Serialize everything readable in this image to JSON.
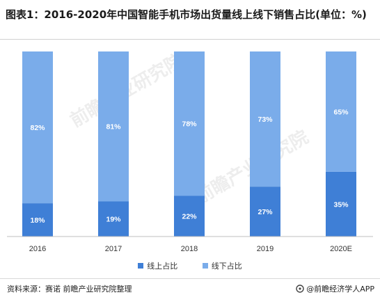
{
  "title": "图表1：2016-2020年中国智能手机市场出货量线上线下销售占比(单位：%)",
  "chart_data": {
    "type": "bar",
    "stacked": true,
    "categories": [
      "2016",
      "2017",
      "2018",
      "2019",
      "2020E"
    ],
    "series": [
      {
        "name": "线上占比",
        "values": [
          18,
          19,
          22,
          27,
          35
        ],
        "color": "#3f7fd6",
        "labels": [
          "18%",
          "19%",
          "22%",
          "27%",
          "35%"
        ]
      },
      {
        "name": "线下占比",
        "values": [
          82,
          81,
          78,
          73,
          65
        ],
        "color": "#7aacea",
        "labels": [
          "82%",
          "81%",
          "78%",
          "73%",
          "65%"
        ]
      }
    ],
    "ylim": [
      0,
      100
    ],
    "grid": false,
    "legend_position": "bottom",
    "label_color": "#ffffff"
  },
  "source": "资料来源：赛诺 前瞻产业研究院整理",
  "brand": "@前瞻经济学人APP",
  "watermark": "前瞻产业研究院",
  "icons": {
    "brand": "qianzhan-logo-icon"
  }
}
